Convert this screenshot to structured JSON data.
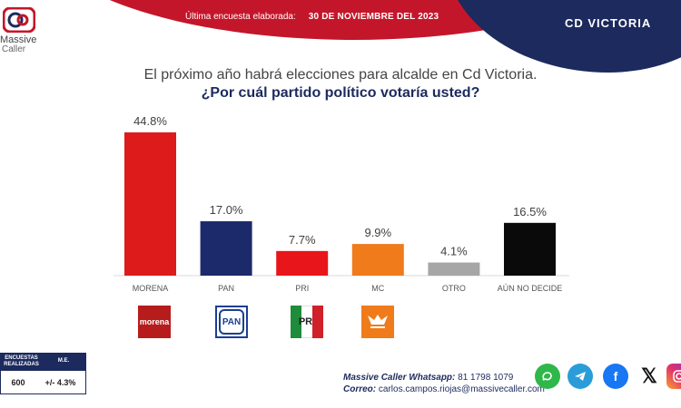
{
  "header": {
    "logo_line1": "Massive",
    "logo_line2": "Caller",
    "survey_label": "Última encuesta elaborada:",
    "survey_date": "30 DE NOVIEMBRE  DEL 2023",
    "city": "CD  VICTORIA",
    "colors": {
      "red": "#c4162a",
      "navy": "#1c2a5e"
    }
  },
  "question": {
    "line1": "El próximo año habrá elecciones para alcalde en Cd Victoria.",
    "line2": "¿Por cuál partido político votaría usted?"
  },
  "chart_data": {
    "type": "bar",
    "categories": [
      "MORENA",
      "PAN",
      "PRI",
      "MC",
      "OTRO",
      "AÚN NO DECIDE"
    ],
    "values": [
      44.8,
      17.0,
      7.7,
      9.9,
      4.1,
      16.5
    ],
    "value_labels": [
      "44.8%",
      "17.0%",
      "7.7%",
      "9.9%",
      "4.1%",
      "16.5%"
    ],
    "colors": [
      "#dd1b1b",
      "#1c2a6b",
      "#e8161b",
      "#f07b1b",
      "#a6a6a6",
      "#0a0a0a"
    ],
    "title": "",
    "xlabel": "",
    "ylabel": "",
    "ylim": [
      0,
      50
    ],
    "grid": false,
    "legend": "none"
  },
  "party_logos": {
    "morena": {
      "icon": "morena-logo",
      "text": "morena"
    },
    "pan": {
      "icon": "pan-logo",
      "text": "PAN"
    },
    "pri": {
      "icon": "pri-logo",
      "text": "PRI"
    },
    "mc": {
      "icon": "mc-logo"
    }
  },
  "stats_box": {
    "col1_header": "ENCUESTAS REALIZADAS",
    "col2_header": "M.E.",
    "col1_value": "600",
    "col2_value": "+/- 4.3%"
  },
  "contact": {
    "whatsapp_label": "Massive Caller Whatsapp:",
    "whatsapp_number": "81 1798  1079",
    "email_label": "Correo:",
    "email": "carlos.campos.riojas@massivecaller.com"
  },
  "social_icons": [
    "whatsapp-icon",
    "telegram-icon",
    "facebook-icon",
    "x-icon",
    "instagram-icon"
  ]
}
